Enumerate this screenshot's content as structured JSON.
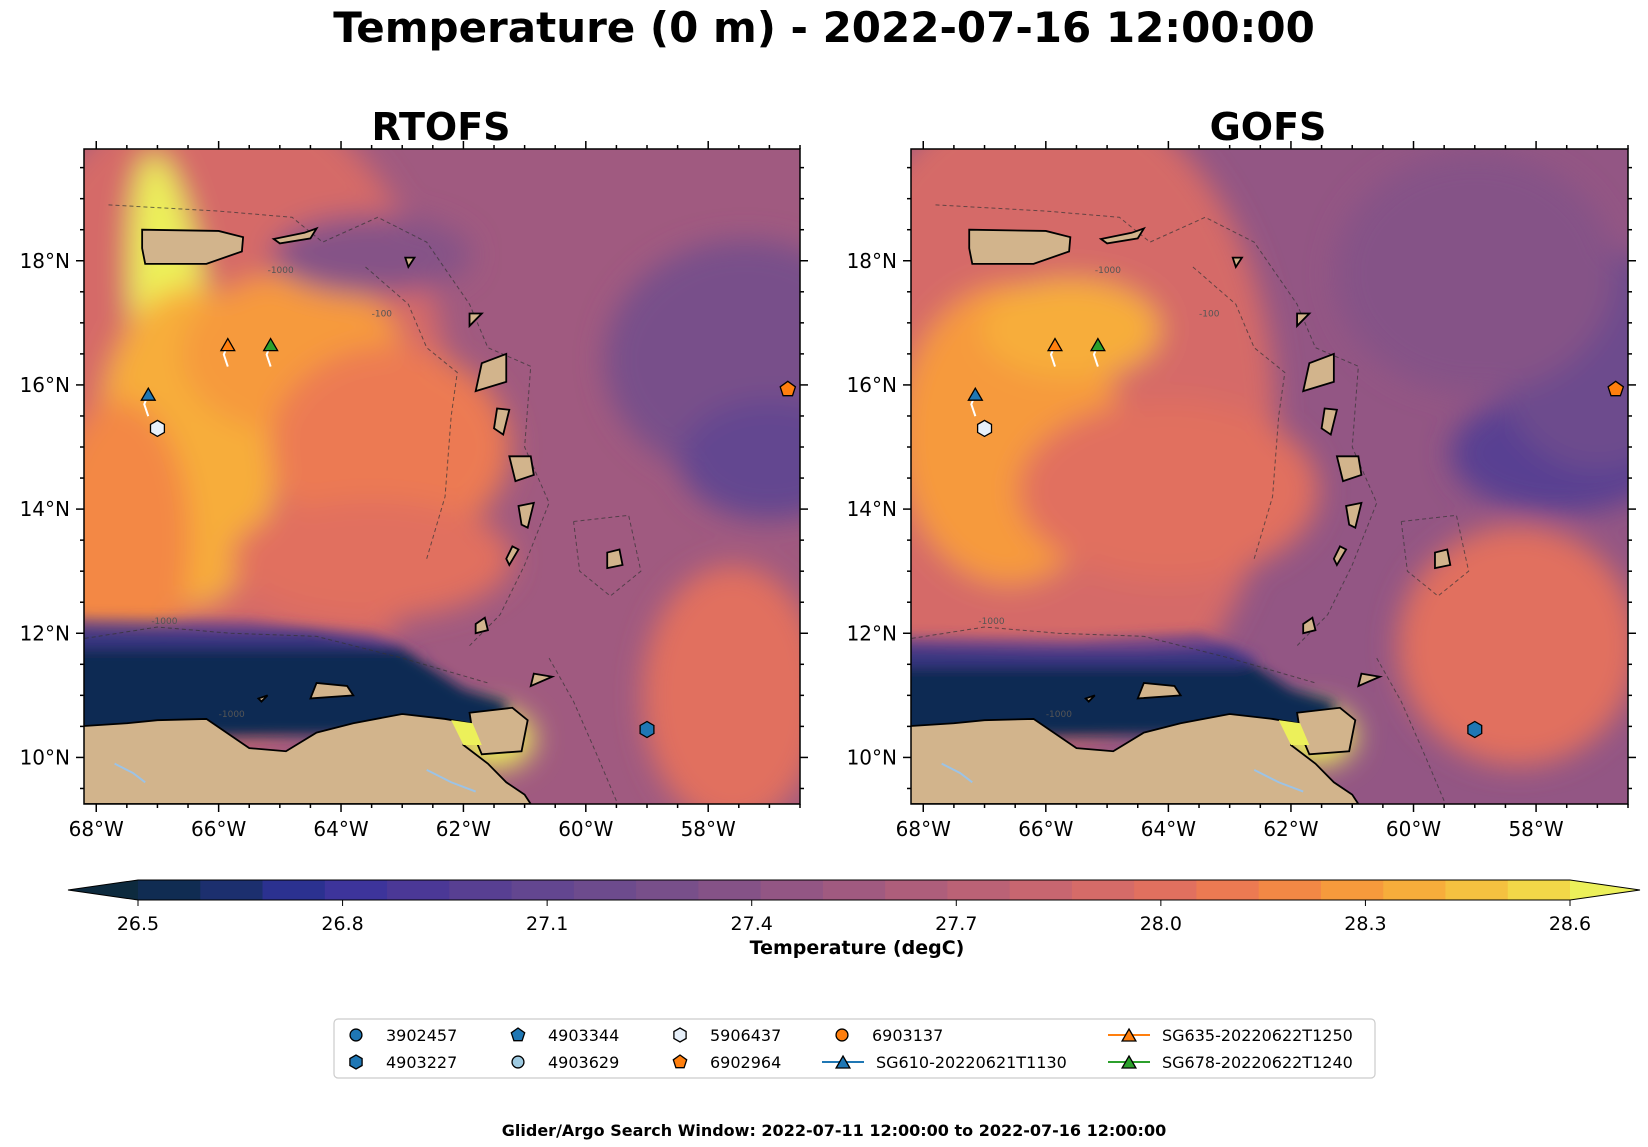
{
  "figure": {
    "title": "Temperature (0 m) - 2022-07-16 12:00:00",
    "footer": "Glider/Argo Search Window: 2022-07-11 12:00:00 to 2022-07-16 12:00:00"
  },
  "panels": [
    {
      "title": "RTOFS"
    },
    {
      "title": "GOFS"
    }
  ],
  "colorbar": {
    "label": "Temperature (degC)",
    "ticks": [
      "26.5",
      "26.8",
      "27.1",
      "27.4",
      "27.7",
      "28.0",
      "28.3",
      "28.6"
    ],
    "levels": [
      26.4,
      26.5,
      26.6,
      26.7,
      26.8,
      26.9,
      27.0,
      27.1,
      27.2,
      27.3,
      27.4,
      27.5,
      27.6,
      27.7,
      27.8,
      27.9,
      28.0,
      28.1,
      28.2,
      28.3,
      28.4,
      28.5,
      28.6
    ],
    "colors": [
      "#0d2a3e",
      "#102c52",
      "#1c2f6e",
      "#2b3190",
      "#3d349b",
      "#4b3896",
      "#583f92",
      "#634690",
      "#6d4b8d",
      "#784f8a",
      "#855287",
      "#935684",
      "#a05a80",
      "#ae5e7b",
      "#bb6276",
      "#c86670",
      "#d56b68",
      "#e1705f",
      "#ec7a52",
      "#f38845",
      "#f69a3c",
      "#f7ad3b",
      "#f5c140",
      "#f3d748",
      "#ecf05a"
    ],
    "extend": "both"
  },
  "chart_data": {
    "type": "heatmap",
    "variable": "Temperature (0 m)",
    "units": "degC",
    "x_ticks": [
      "68°W",
      "66°W",
      "64°W",
      "62°W",
      "60°W",
      "58°W"
    ],
    "x_tick_values": [
      -68,
      -66,
      -64,
      -62,
      -60,
      -58
    ],
    "y_ticks": [
      "18°N",
      "16°N",
      "14°N",
      "12°N",
      "10°N"
    ],
    "y_tick_values": [
      18,
      16,
      14,
      12,
      10
    ],
    "xlim": [
      -68.2,
      -56.5
    ],
    "ylim": [
      9.25,
      19.8
    ],
    "contour_labels": [
      "-1000",
      "-100"
    ],
    "models": [
      "RTOFS",
      "GOFS"
    ],
    "observations": [
      {
        "id": "3902457",
        "marker": "circle",
        "color": "#1f77b4"
      },
      {
        "id": "4903227",
        "marker": "hexagon",
        "color": "#1f77b4",
        "lon": -59.0,
        "lat": 10.45
      },
      {
        "id": "4903344",
        "marker": "pentagon",
        "color": "#1f77b4"
      },
      {
        "id": "4903629",
        "marker": "circle",
        "color": "#9ecae1"
      },
      {
        "id": "5906437",
        "marker": "hexagon",
        "color": "#e7f0fa",
        "lon": -67.0,
        "lat": 15.3
      },
      {
        "id": "6902964",
        "marker": "pentagon",
        "color": "#ff7f0e",
        "lon": -56.7,
        "lat": 15.93
      },
      {
        "id": "6903137",
        "marker": "circle",
        "color": "#ff7f0e"
      },
      {
        "id": "SG610-20220621T1130",
        "marker": "triangle",
        "color": "#1f77b4",
        "line": true,
        "lon": -67.15,
        "lat": 15.85
      },
      {
        "id": "SG635-20220622T1250",
        "marker": "triangle",
        "color": "#ff7f0e",
        "line": true,
        "lon": -65.85,
        "lat": 16.65
      },
      {
        "id": "SG678-20220622T1240",
        "marker": "triangle",
        "color": "#2ca02c",
        "line": true,
        "lon": -65.15,
        "lat": 16.65
      }
    ]
  }
}
